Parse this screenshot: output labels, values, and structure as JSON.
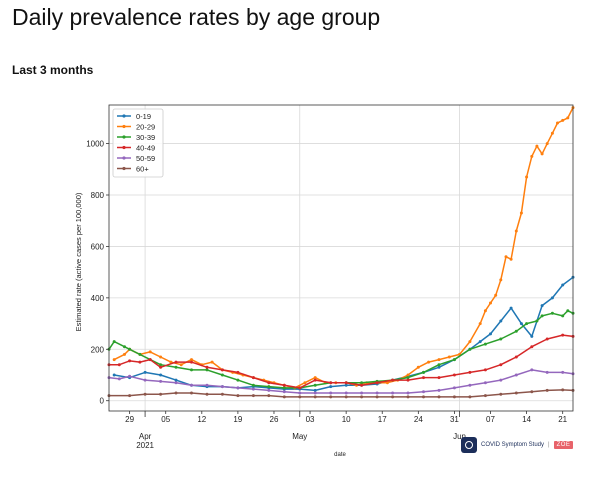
{
  "page": {
    "title": "Daily prevalence rates by age group",
    "subtitle": "Last 3 months"
  },
  "brand": {
    "text": "COVID Symptom Study",
    "separator": "|",
    "partner": "ZOE",
    "logo_icon": "covid-symptom-study-logo-icon"
  },
  "chart_data": {
    "type": "line",
    "title": "",
    "xlabel": "date",
    "ylabel": "Estimated rate (active cases per 100,000)",
    "ylim": [
      -40,
      1150
    ],
    "xlim": [
      -4,
      86
    ],
    "grid": true,
    "legend_position": "top-left",
    "x_day_index_start": "2021-03-29",
    "x_major_ticks": [
      {
        "x": 3,
        "label": "Apr",
        "sub": "2021"
      },
      {
        "x": 33,
        "label": "May",
        "sub": ""
      },
      {
        "x": 64,
        "label": "Jun",
        "sub": ""
      }
    ],
    "x_minor_ticks": [
      {
        "x": 0,
        "label": "29"
      },
      {
        "x": 7,
        "label": "05"
      },
      {
        "x": 14,
        "label": "12"
      },
      {
        "x": 21,
        "label": "19"
      },
      {
        "x": 28,
        "label": "26"
      },
      {
        "x": 35,
        "label": "03"
      },
      {
        "x": 42,
        "label": "10"
      },
      {
        "x": 49,
        "label": "17"
      },
      {
        "x": 56,
        "label": "24"
      },
      {
        "x": 63,
        "label": "31"
      },
      {
        "x": 70,
        "label": "07"
      },
      {
        "x": 77,
        "label": "14"
      },
      {
        "x": 84,
        "label": "21"
      }
    ],
    "y_ticks": [
      0,
      200,
      400,
      600,
      800,
      1000
    ],
    "series": [
      {
        "name": "0-19",
        "color": "#1f77b4",
        "x": [
          -3,
          0,
          3,
          6,
          9,
          12,
          15,
          18,
          21,
          24,
          27,
          30,
          33,
          36,
          39,
          42,
          45,
          48,
          51,
          54,
          57,
          60,
          63,
          66,
          68,
          70,
          72,
          74,
          76,
          78,
          80,
          82,
          84,
          86
        ],
        "values": [
          100,
          90,
          110,
          100,
          80,
          60,
          55,
          55,
          50,
          55,
          50,
          45,
          45,
          40,
          55,
          60,
          60,
          65,
          80,
          95,
          110,
          130,
          160,
          200,
          230,
          260,
          310,
          360,
          300,
          250,
          370,
          400,
          450,
          480
        ]
      },
      {
        "name": "20-29",
        "color": "#ff7f0e",
        "x": [
          -3,
          -1,
          0,
          2,
          4,
          6,
          8,
          10,
          12,
          14,
          16,
          18,
          20,
          22,
          24,
          26,
          28,
          30,
          32,
          34,
          36,
          38,
          40,
          42,
          44,
          46,
          48,
          50,
          52,
          54,
          56,
          58,
          60,
          62,
          64,
          66,
          68,
          69,
          70,
          71,
          72,
          73,
          74,
          75,
          76,
          77,
          78,
          79,
          80,
          81,
          82,
          83,
          84,
          85,
          86
        ],
        "values": [
          160,
          180,
          200,
          180,
          190,
          170,
          150,
          140,
          160,
          140,
          150,
          120,
          110,
          100,
          90,
          80,
          70,
          60,
          50,
          70,
          90,
          70,
          70,
          70,
          60,
          70,
          70,
          70,
          80,
          100,
          130,
          150,
          160,
          170,
          180,
          230,
          300,
          350,
          380,
          410,
          470,
          560,
          550,
          660,
          730,
          870,
          950,
          990,
          960,
          1000,
          1040,
          1080,
          1090,
          1100,
          1140
        ]
      },
      {
        "name": "30-39",
        "color": "#2ca02c",
        "x": [
          -4,
          -3,
          -1,
          0,
          2,
          4,
          6,
          9,
          12,
          15,
          18,
          21,
          24,
          27,
          30,
          33,
          36,
          39,
          42,
          45,
          48,
          51,
          54,
          57,
          60,
          63,
          66,
          69,
          72,
          75,
          77,
          79,
          80,
          82,
          84,
          85,
          86
        ],
        "values": [
          200,
          230,
          210,
          200,
          180,
          160,
          140,
          130,
          120,
          120,
          100,
          80,
          60,
          55,
          50,
          50,
          60,
          70,
          70,
          70,
          75,
          80,
          90,
          110,
          140,
          160,
          200,
          220,
          240,
          270,
          300,
          310,
          330,
          340,
          330,
          350,
          340
        ]
      },
      {
        "name": "40-49",
        "color": "#d62728",
        "x": [
          -4,
          -2,
          0,
          2,
          4,
          6,
          9,
          12,
          15,
          18,
          21,
          24,
          27,
          30,
          33,
          36,
          39,
          42,
          45,
          48,
          51,
          54,
          57,
          60,
          63,
          66,
          69,
          72,
          75,
          78,
          81,
          84,
          86
        ],
        "values": [
          140,
          140,
          155,
          150,
          160,
          130,
          150,
          150,
          130,
          120,
          110,
          90,
          70,
          60,
          50,
          80,
          70,
          70,
          60,
          70,
          80,
          80,
          90,
          90,
          100,
          110,
          120,
          140,
          170,
          210,
          240,
          255,
          250
        ]
      },
      {
        "name": "50-59",
        "color": "#9467bd",
        "x": [
          -4,
          -2,
          0,
          3,
          6,
          9,
          12,
          15,
          18,
          21,
          24,
          27,
          30,
          33,
          36,
          39,
          42,
          45,
          48,
          51,
          54,
          57,
          60,
          63,
          66,
          69,
          72,
          75,
          78,
          81,
          84,
          86
        ],
        "values": [
          90,
          85,
          95,
          80,
          75,
          70,
          60,
          60,
          55,
          50,
          45,
          40,
          35,
          30,
          30,
          30,
          30,
          30,
          30,
          30,
          30,
          35,
          40,
          50,
          60,
          70,
          80,
          100,
          120,
          110,
          110,
          105
        ]
      },
      {
        "name": "60+",
        "color": "#8c564b",
        "x": [
          -4,
          0,
          3,
          6,
          9,
          12,
          15,
          18,
          21,
          24,
          27,
          30,
          33,
          36,
          39,
          42,
          45,
          48,
          51,
          54,
          57,
          60,
          63,
          66,
          69,
          72,
          75,
          78,
          81,
          84,
          86
        ],
        "values": [
          20,
          20,
          25,
          25,
          30,
          30,
          25,
          25,
          20,
          20,
          20,
          15,
          15,
          15,
          15,
          15,
          15,
          15,
          15,
          15,
          15,
          15,
          15,
          15,
          20,
          25,
          30,
          35,
          40,
          42,
          40
        ]
      }
    ]
  }
}
